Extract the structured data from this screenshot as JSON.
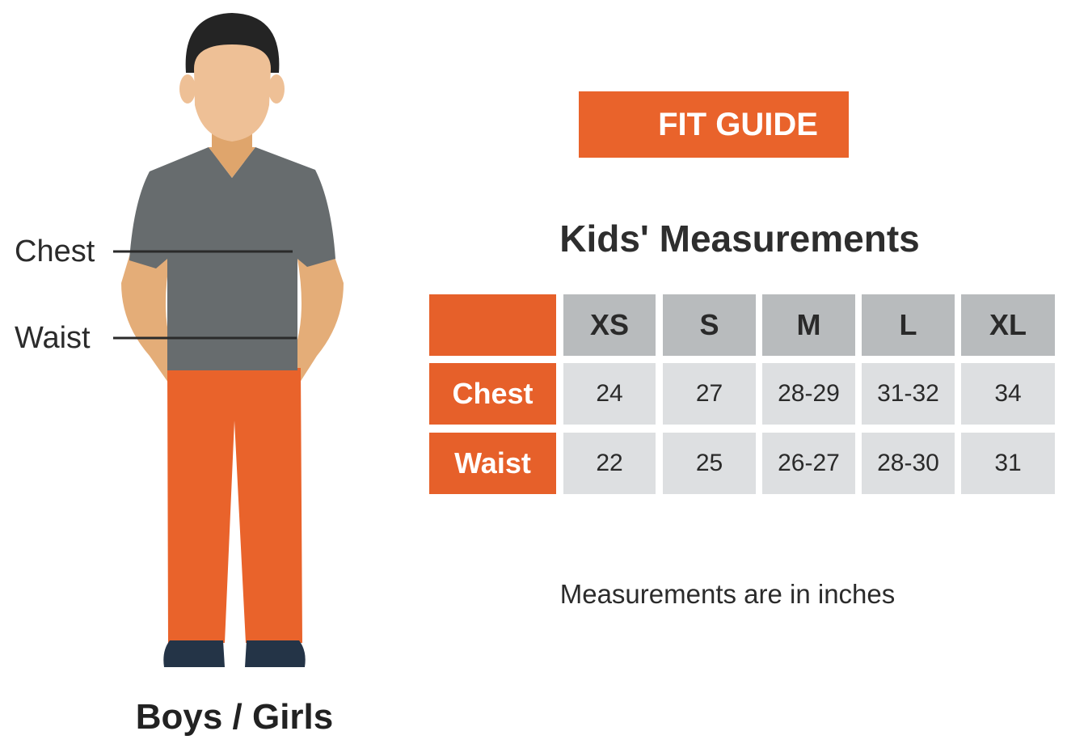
{
  "figure": {
    "chest_label": "Chest",
    "waist_label": "Waist",
    "caption": "Boys / Girls"
  },
  "badge": "FIT GUIDE",
  "title": "Kids' Measurements",
  "table": {
    "columns": [
      "XS",
      "S",
      "M",
      "L",
      "XL"
    ],
    "rows": [
      {
        "label": "Chest",
        "values": [
          "24",
          "27",
          "28-29",
          "31-32",
          "34"
        ]
      },
      {
        "label": "Waist",
        "values": [
          "22",
          "25",
          "26-27",
          "28-30",
          "31"
        ]
      }
    ]
  },
  "note": "Measurements are in inches",
  "colors": {
    "accent": "#e9632b",
    "header_cell": "#b8bbbd",
    "value_cell": "#dddfe1",
    "shirt": "#676c6e",
    "skin": "#e8b07a"
  }
}
